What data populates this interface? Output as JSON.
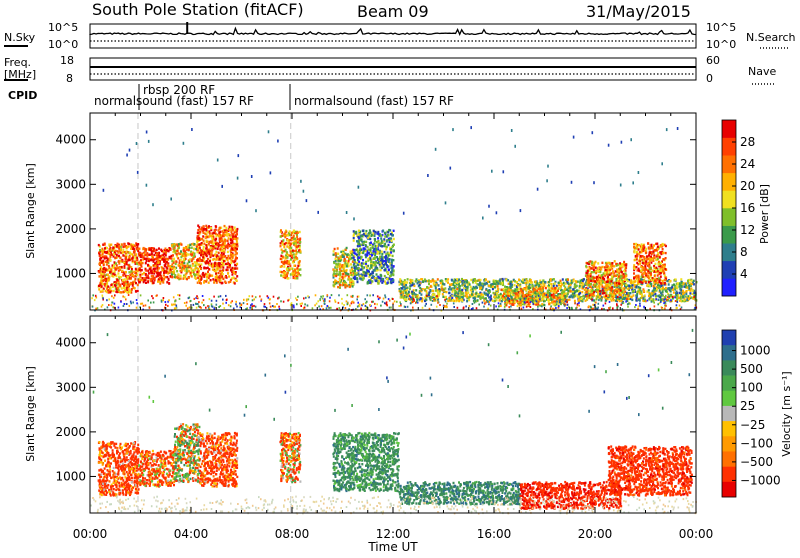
{
  "header": {
    "station": "South Pole Station (fitACF)",
    "beam": "Beam 09",
    "date": "31/May/2015"
  },
  "top_panels": {
    "nsky_label": "N.Sky",
    "nsky_ticks": [
      "10^5",
      "10^0"
    ],
    "nsearch_label": "N.Search",
    "freq_label": "Freq.",
    "freq_unit": "[MHz]",
    "freq_ticks": [
      "18",
      "8"
    ],
    "nave_label": "Nave",
    "nave_ticks": [
      "60",
      "0"
    ],
    "cpid_label": "CPID",
    "cpid_segments": [
      {
        "label": "normalsound (fast) 157 RF",
        "start_hour": 0
      },
      {
        "label": "rbsp 200 RF",
        "start_hour": 1.9
      },
      {
        "label": "normalsound (fast) 157 RF",
        "start_hour": 7.95
      }
    ]
  },
  "chart_data": [
    {
      "type": "heatmap",
      "quantity": "Power",
      "xlabel": "",
      "ylabel": "Slant Range [km]",
      "xlim": [
        0,
        24
      ],
      "ylim": [
        180,
        4600
      ],
      "yticks": [
        1000,
        2000,
        3000,
        4000
      ],
      "colorbar": {
        "label": "Power [dB]",
        "ticks": [
          4,
          8,
          12,
          16,
          20,
          24,
          28
        ],
        "range": [
          0,
          32
        ],
        "colors": [
          "#2020ff",
          "#1f3fb4",
          "#2e7e8c",
          "#3a9a4a",
          "#7fbf2a",
          "#f0e020",
          "#ffb000",
          "#ff7000",
          "#ff4000",
          "#e80000"
        ]
      },
      "scatter_regions": [
        {
          "t0": 0.3,
          "t1": 1.9,
          "r0": 600,
          "r1": 1700,
          "level": 24
        },
        {
          "t0": 1.9,
          "t1": 3.2,
          "r0": 800,
          "r1": 1600,
          "level": 29
        },
        {
          "t0": 3.2,
          "t1": 4.2,
          "r0": 900,
          "r1": 1700,
          "level": 20
        },
        {
          "t0": 4.2,
          "t1": 5.8,
          "r0": 800,
          "r1": 2100,
          "level": 26
        },
        {
          "t0": 7.5,
          "t1": 8.3,
          "r0": 900,
          "r1": 2000,
          "level": 22
        },
        {
          "t0": 9.6,
          "t1": 10.4,
          "r0": 700,
          "r1": 1600,
          "level": 18
        },
        {
          "t0": 10.4,
          "t1": 12.0,
          "r0": 800,
          "r1": 2000,
          "level": 10
        },
        {
          "t0": 12.2,
          "t1": 24.0,
          "r0": 400,
          "r1": 900,
          "level": 14
        },
        {
          "t0": 16.2,
          "t1": 18.8,
          "r0": 300,
          "r1": 700,
          "level": 20
        },
        {
          "t0": 19.6,
          "t1": 21.2,
          "r0": 500,
          "r1": 1300,
          "level": 22
        },
        {
          "t0": 21.5,
          "t1": 22.8,
          "r0": 800,
          "r1": 1700,
          "level": 24
        }
      ]
    },
    {
      "type": "heatmap",
      "quantity": "Velocity",
      "xlabel": "Time UT",
      "ylabel": "Slant Range [km]",
      "xlim": [
        0,
        24
      ],
      "ylim": [
        180,
        4600
      ],
      "xticks": [
        "00:00",
        "04:00",
        "08:00",
        "12:00",
        "16:00",
        "20:00",
        "00:00"
      ],
      "yticks": [
        1000,
        2000,
        3000,
        4000
      ],
      "colorbar": {
        "label": "Velocity [m s⁻¹]",
        "ticks": [
          "1000",
          "500",
          "100",
          "25",
          "−25",
          "−100",
          "−500",
          "−1000"
        ],
        "colors": [
          "#2040b0",
          "#2e6e8c",
          "#3a8a5a",
          "#4aa84a",
          "#60c840",
          "#b8b8b8",
          "#ffc000",
          "#ff9a00",
          "#ff7000",
          "#ff3000",
          "#e80000"
        ]
      },
      "scatter_regions": [
        {
          "t0": 0.3,
          "t1": 1.9,
          "r0": 600,
          "r1": 1800,
          "v": -200
        },
        {
          "t0": 1.9,
          "t1": 3.3,
          "r0": 800,
          "r1": 1600,
          "v": -150
        },
        {
          "t0": 3.3,
          "t1": 4.3,
          "r0": 900,
          "r1": 2200,
          "v": 50
        },
        {
          "t0": 4.3,
          "t1": 5.8,
          "r0": 800,
          "r1": 2000,
          "v": -200
        },
        {
          "t0": 7.5,
          "t1": 8.3,
          "r0": 900,
          "r1": 2000,
          "v": -100
        },
        {
          "t0": 9.6,
          "t1": 12.2,
          "r0": 700,
          "r1": 2000,
          "v": 300
        },
        {
          "t0": 12.2,
          "t1": 17.0,
          "r0": 400,
          "r1": 900,
          "v": 400
        },
        {
          "t0": 17.0,
          "t1": 21.0,
          "r0": 300,
          "r1": 900,
          "v": -400
        },
        {
          "t0": 20.5,
          "t1": 23.8,
          "r0": 600,
          "r1": 1700,
          "v": -300
        }
      ]
    }
  ]
}
